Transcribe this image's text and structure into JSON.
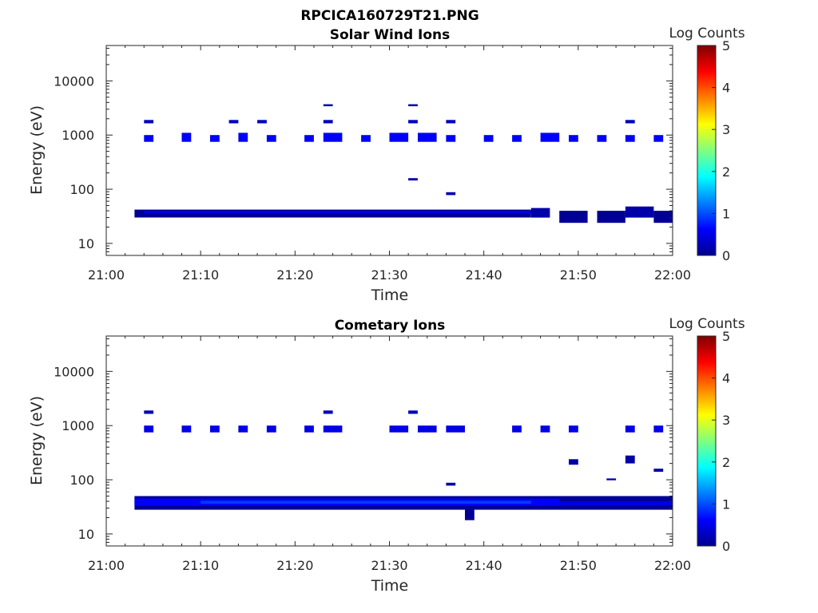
{
  "figure": {
    "title": "RPCICA160729T21.PNG"
  },
  "colorbar": {
    "label": "Log Counts",
    "ticks": [
      "0",
      "1",
      "2",
      "3",
      "4",
      "5"
    ],
    "range": [
      0,
      5
    ],
    "colormap": "jet"
  },
  "chart_data": [
    {
      "type": "heatmap",
      "title": "Solar Wind Ions",
      "xlabel": "Time",
      "ylabel": "Energy (eV)",
      "x_ticks": [
        "21:00",
        "21:10",
        "21:20",
        "21:30",
        "21:40",
        "21:50",
        "22:00"
      ],
      "y_ticks": [
        "10",
        "100",
        "1000",
        "10000"
      ],
      "y_scale": "log",
      "xlim": [
        "21:00",
        "22:00"
      ],
      "ylim": [
        6,
        45000
      ],
      "cells": [
        {
          "t0": "21:03",
          "t1": "21:45",
          "e0": 30,
          "e1": 42,
          "v": 0.1
        },
        {
          "t0": "21:04",
          "t1": "21:46",
          "e0": 36,
          "e1": 40,
          "v": 0.5
        },
        {
          "t0": "21:45",
          "t1": "21:47",
          "e0": 30,
          "e1": 45,
          "v": 0.2
        },
        {
          "t0": "21:48",
          "t1": "21:51",
          "e0": 24,
          "e1": 40,
          "v": 0.1
        },
        {
          "t0": "21:52",
          "t1": "21:55",
          "e0": 24,
          "e1": 40,
          "v": 0.1
        },
        {
          "t0": "21:55",
          "t1": "21:58",
          "e0": 30,
          "e1": 48,
          "v": 0.2
        },
        {
          "t0": "21:58",
          "t1": "22:00",
          "e0": 24,
          "e1": 40,
          "v": 0.1
        },
        {
          "t0": "21:04",
          "t1": "21:05",
          "e0": 750,
          "e1": 1000,
          "v": 0.6
        },
        {
          "t0": "21:08",
          "t1": "21:09",
          "e0": 750,
          "e1": 1100,
          "v": 0.6
        },
        {
          "t0": "21:11",
          "t1": "21:12",
          "e0": 750,
          "e1": 1000,
          "v": 0.6
        },
        {
          "t0": "21:14",
          "t1": "21:15",
          "e0": 750,
          "e1": 1100,
          "v": 0.6
        },
        {
          "t0": "21:17",
          "t1": "21:18",
          "e0": 750,
          "e1": 1000,
          "v": 0.6
        },
        {
          "t0": "21:21",
          "t1": "21:22",
          "e0": 750,
          "e1": 1000,
          "v": 0.6
        },
        {
          "t0": "21:23",
          "t1": "21:25",
          "e0": 750,
          "e1": 1100,
          "v": 0.6
        },
        {
          "t0": "21:27",
          "t1": "21:28",
          "e0": 750,
          "e1": 1000,
          "v": 0.6
        },
        {
          "t0": "21:30",
          "t1": "21:32",
          "e0": 750,
          "e1": 1100,
          "v": 0.6
        },
        {
          "t0": "21:33",
          "t1": "21:35",
          "e0": 750,
          "e1": 1100,
          "v": 0.6
        },
        {
          "t0": "21:36",
          "t1": "21:37",
          "e0": 750,
          "e1": 1000,
          "v": 0.6
        },
        {
          "t0": "21:40",
          "t1": "21:41",
          "e0": 750,
          "e1": 1000,
          "v": 0.6
        },
        {
          "t0": "21:43",
          "t1": "21:44",
          "e0": 750,
          "e1": 1000,
          "v": 0.6
        },
        {
          "t0": "21:46",
          "t1": "21:48",
          "e0": 750,
          "e1": 1100,
          "v": 0.6
        },
        {
          "t0": "21:49",
          "t1": "21:50",
          "e0": 750,
          "e1": 1000,
          "v": 0.6
        },
        {
          "t0": "21:52",
          "t1": "21:53",
          "e0": 750,
          "e1": 1000,
          "v": 0.6
        },
        {
          "t0": "21:55",
          "t1": "21:56",
          "e0": 750,
          "e1": 1000,
          "v": 0.6
        },
        {
          "t0": "21:58",
          "t1": "21:59",
          "e0": 750,
          "e1": 1000,
          "v": 0.6
        },
        {
          "t0": "21:04",
          "t1": "21:05",
          "e0": 1650,
          "e1": 1900,
          "v": 0.3
        },
        {
          "t0": "21:13",
          "t1": "21:14",
          "e0": 1650,
          "e1": 1900,
          "v": 0.3
        },
        {
          "t0": "21:16",
          "t1": "21:17",
          "e0": 1650,
          "e1": 1900,
          "v": 0.3
        },
        {
          "t0": "21:23",
          "t1": "21:24",
          "e0": 1650,
          "e1": 1900,
          "v": 0.3
        },
        {
          "t0": "21:32",
          "t1": "21:33",
          "e0": 1650,
          "e1": 1900,
          "v": 0.3
        },
        {
          "t0": "21:36",
          "t1": "21:37",
          "e0": 1650,
          "e1": 1900,
          "v": 0.3
        },
        {
          "t0": "21:55",
          "t1": "21:56",
          "e0": 1650,
          "e1": 1900,
          "v": 0.3
        },
        {
          "t0": "21:23",
          "t1": "21:24",
          "e0": 3400,
          "e1": 3700,
          "v": 0.2
        },
        {
          "t0": "21:32",
          "t1": "21:33",
          "e0": 3400,
          "e1": 3700,
          "v": 0.2
        },
        {
          "t0": "21:36",
          "t1": "21:37",
          "e0": 78,
          "e1": 88,
          "v": 0.2
        },
        {
          "t0": "21:32",
          "t1": "21:33",
          "e0": 145,
          "e1": 160,
          "v": 0.2
        }
      ]
    },
    {
      "type": "heatmap",
      "title": "Cometary Ions",
      "xlabel": "Time",
      "ylabel": "Energy (eV)",
      "x_ticks": [
        "21:00",
        "21:10",
        "21:20",
        "21:30",
        "21:40",
        "21:50",
        "22:00"
      ],
      "y_ticks": [
        "10",
        "100",
        "1000",
        "10000"
      ],
      "y_scale": "log",
      "xlim": [
        "21:00",
        "22:00"
      ],
      "ylim": [
        6,
        45000
      ],
      "cells": [
        {
          "t0": "21:03",
          "t1": "22:00",
          "e0": 28,
          "e1": 50,
          "v": 0.1
        },
        {
          "t0": "21:03",
          "t1": "21:48",
          "e0": 33,
          "e1": 45,
          "v": 0.6
        },
        {
          "t0": "21:10",
          "t1": "21:45",
          "e0": 36,
          "e1": 41,
          "v": 0.9
        },
        {
          "t0": "21:48",
          "t1": "22:00",
          "e0": 34,
          "e1": 40,
          "v": 0.5
        },
        {
          "t0": "21:38",
          "t1": "21:39",
          "e0": 18,
          "e1": 30,
          "v": 0.1
        },
        {
          "t0": "21:04",
          "t1": "21:05",
          "e0": 750,
          "e1": 1000,
          "v": 0.5
        },
        {
          "t0": "21:08",
          "t1": "21:09",
          "e0": 750,
          "e1": 1000,
          "v": 0.5
        },
        {
          "t0": "21:11",
          "t1": "21:12",
          "e0": 750,
          "e1": 1000,
          "v": 0.5
        },
        {
          "t0": "21:14",
          "t1": "21:15",
          "e0": 750,
          "e1": 1000,
          "v": 0.5
        },
        {
          "t0": "21:17",
          "t1": "21:18",
          "e0": 750,
          "e1": 1000,
          "v": 0.5
        },
        {
          "t0": "21:21",
          "t1": "21:22",
          "e0": 750,
          "e1": 1000,
          "v": 0.5
        },
        {
          "t0": "21:23",
          "t1": "21:25",
          "e0": 750,
          "e1": 1000,
          "v": 0.5
        },
        {
          "t0": "21:30",
          "t1": "21:32",
          "e0": 750,
          "e1": 1000,
          "v": 0.5
        },
        {
          "t0": "21:33",
          "t1": "21:35",
          "e0": 750,
          "e1": 1000,
          "v": 0.5
        },
        {
          "t0": "21:36",
          "t1": "21:38",
          "e0": 750,
          "e1": 1000,
          "v": 0.5
        },
        {
          "t0": "21:43",
          "t1": "21:44",
          "e0": 750,
          "e1": 1000,
          "v": 0.5
        },
        {
          "t0": "21:46",
          "t1": "21:47",
          "e0": 750,
          "e1": 1000,
          "v": 0.5
        },
        {
          "t0": "21:49",
          "t1": "21:50",
          "e0": 750,
          "e1": 1000,
          "v": 0.5
        },
        {
          "t0": "21:55",
          "t1": "21:56",
          "e0": 750,
          "e1": 1000,
          "v": 0.5
        },
        {
          "t0": "21:58",
          "t1": "21:59",
          "e0": 750,
          "e1": 1000,
          "v": 0.5
        },
        {
          "t0": "21:04",
          "t1": "21:05",
          "e0": 1650,
          "e1": 1900,
          "v": 0.3
        },
        {
          "t0": "21:23",
          "t1": "21:24",
          "e0": 1650,
          "e1": 1900,
          "v": 0.3
        },
        {
          "t0": "21:32",
          "t1": "21:33",
          "e0": 1650,
          "e1": 1900,
          "v": 0.3
        },
        {
          "t0": "21:49",
          "t1": "21:50",
          "e0": 190,
          "e1": 240,
          "v": 0.2
        },
        {
          "t0": "21:55",
          "t1": "21:56",
          "e0": 200,
          "e1": 280,
          "v": 0.2
        },
        {
          "t0": "21:58",
          "t1": "21:59",
          "e0": 140,
          "e1": 160,
          "v": 0.2
        },
        {
          "t0": "21:36",
          "t1": "21:37",
          "e0": 78,
          "e1": 88,
          "v": 0.2
        },
        {
          "t0": "21:53",
          "t1": "21:54",
          "e0": 98,
          "e1": 106,
          "v": 0.2
        }
      ]
    }
  ]
}
